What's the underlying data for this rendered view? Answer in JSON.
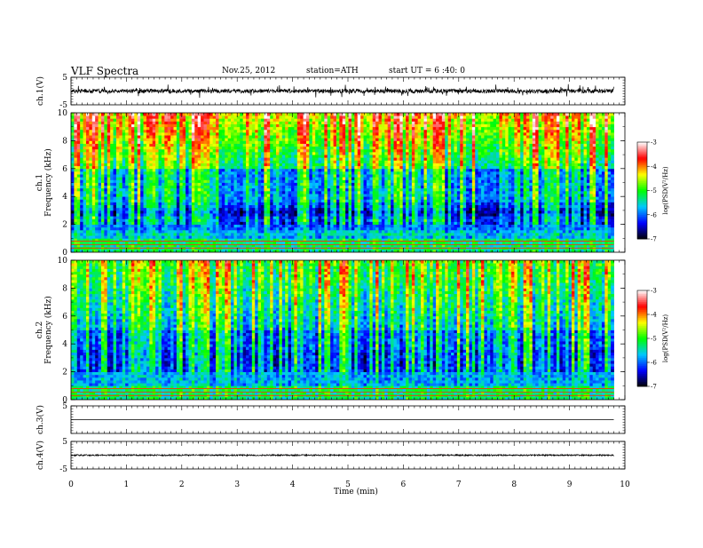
{
  "header": {
    "title": "VLF Spectra",
    "date": "Nov.25, 2012",
    "station": "station=ATH",
    "start": "start UT =  6 :40: 0"
  },
  "chart_data": [
    {
      "type": "line",
      "name": "ch1-waveform",
      "ylabel": "ch.1(V)",
      "ylim": [
        -5,
        5
      ],
      "yticks": [
        "5",
        "-5"
      ],
      "x_range_min": [
        0,
        9.8
      ],
      "baseline": 0,
      "amplitude": 1.2
    },
    {
      "type": "heatmap",
      "name": "ch1-spectrogram",
      "ylabel_top": "ch.1",
      "ylabel": "Frequency (kHz)",
      "ylim": [
        0,
        10
      ],
      "yticks": [
        "0",
        "2",
        "4",
        "6",
        "8",
        "10"
      ],
      "x_range_min": [
        0,
        9.8
      ],
      "colorbar": {
        "label": "log(PSD(V²/Hz)",
        "range": [
          -7,
          -3
        ],
        "ticks": [
          "-3",
          "-4",
          "-5",
          "-6",
          "-7"
        ],
        "colors": [
          "#000000",
          "#0000ff",
          "#00c8ff",
          "#00ff00",
          "#ffff00",
          "#ff0000",
          "#ffffff"
        ]
      }
    },
    {
      "type": "heatmap",
      "name": "ch2-spectrogram",
      "ylabel_top": "ch.2",
      "ylabel": "Frequency (kHz)",
      "ylim": [
        0,
        10
      ],
      "yticks": [
        "0",
        "2",
        "4",
        "6",
        "8",
        "10"
      ],
      "x_range_min": [
        0,
        9.8
      ],
      "colorbar": {
        "label": "log(PSD(V²/Hz)",
        "range": [
          -7,
          -3
        ],
        "ticks": [
          "-3",
          "-4",
          "-5",
          "-6",
          "-7"
        ],
        "colors": [
          "#000000",
          "#0000ff",
          "#00c8ff",
          "#00ff00",
          "#ffff00",
          "#ff0000",
          "#ffffff"
        ]
      }
    },
    {
      "type": "line",
      "name": "ch3-waveform",
      "ylabel": "ch.3(V)",
      "ylim": [
        -5,
        5
      ],
      "yticks": [
        "5"
      ],
      "x_range_min": [
        0,
        9.8
      ],
      "baseline": 0,
      "amplitude": 0.02
    },
    {
      "type": "line",
      "name": "ch4-waveform",
      "ylabel": "ch.4(V)",
      "ylim": [
        -5,
        5
      ],
      "yticks": [
        "5",
        "-5"
      ],
      "x_range_min": [
        0,
        9.8
      ],
      "baseline": 0,
      "amplitude": 0.25
    }
  ],
  "xaxis": {
    "label": "Time (min)",
    "range": [
      0,
      10
    ],
    "ticks": [
      "0",
      "1",
      "2",
      "3",
      "4",
      "5",
      "6",
      "7",
      "8",
      "9",
      "10"
    ]
  }
}
